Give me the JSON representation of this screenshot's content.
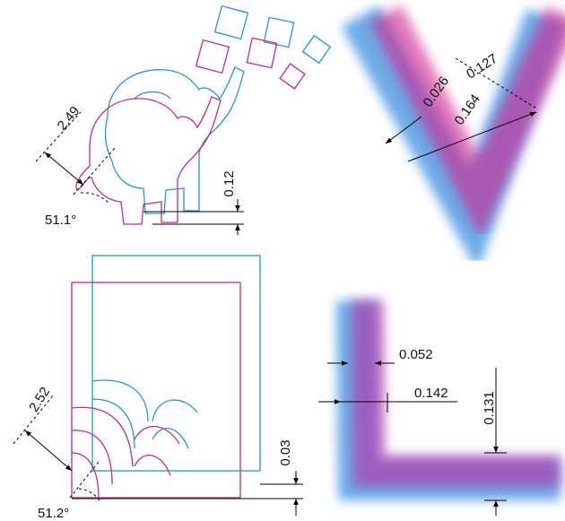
{
  "panels": [
    {
      "labels": [
        "2.49",
        "51.1°",
        "0.12"
      ]
    },
    {
      "labels": [
        "0.127",
        "0.026",
        "0.164"
      ]
    },
    {
      "labels": [
        "2.52",
        "51.2°",
        "0.03"
      ]
    },
    {
      "labels": [
        "0.052",
        "0.142",
        "0.131"
      ]
    }
  ]
}
